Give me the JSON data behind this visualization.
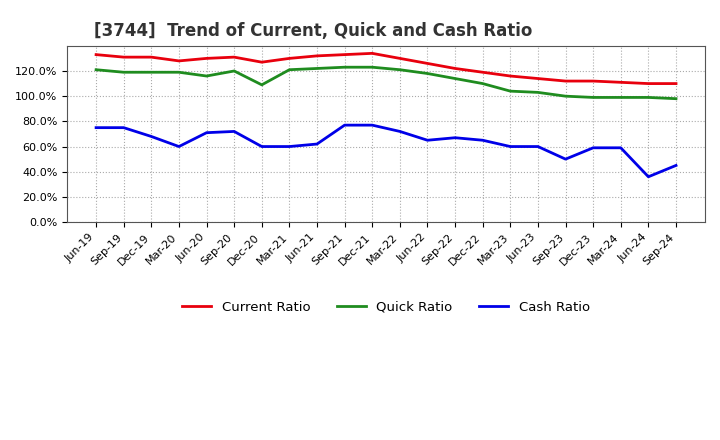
{
  "title": "[3744]  Trend of Current, Quick and Cash Ratio",
  "x_labels": [
    "Jun-19",
    "Sep-19",
    "Dec-19",
    "Mar-20",
    "Jun-20",
    "Sep-20",
    "Dec-20",
    "Mar-21",
    "Jun-21",
    "Sep-21",
    "Dec-21",
    "Mar-22",
    "Jun-22",
    "Sep-22",
    "Dec-22",
    "Mar-23",
    "Jun-23",
    "Sep-23",
    "Dec-23",
    "Mar-24",
    "Jun-24",
    "Sep-24"
  ],
  "current_ratio": [
    133,
    131,
    131,
    128,
    130,
    131,
    127,
    130,
    132,
    133,
    134,
    130,
    126,
    122,
    119,
    116,
    114,
    112,
    112,
    111,
    110,
    110
  ],
  "quick_ratio": [
    121,
    119,
    119,
    119,
    116,
    120,
    109,
    121,
    122,
    123,
    123,
    121,
    118,
    114,
    110,
    104,
    103,
    100,
    99,
    99,
    99,
    98
  ],
  "cash_ratio": [
    75,
    75,
    68,
    60,
    71,
    72,
    60,
    60,
    62,
    77,
    77,
    72,
    65,
    67,
    65,
    60,
    60,
    50,
    59,
    59,
    36,
    45
  ],
  "current_color": "#e8000d",
  "quick_color": "#1f8c1f",
  "cash_color": "#0000e8",
  "bg_color": "#ffffff",
  "plot_bg_color": "#ffffff",
  "grid_color": "#aaaaaa",
  "ylim": [
    0,
    140
  ],
  "yticks": [
    0,
    20,
    40,
    60,
    80,
    100,
    120
  ],
  "title_fontsize": 12,
  "legend_fontsize": 9.5,
  "tick_fontsize": 8
}
